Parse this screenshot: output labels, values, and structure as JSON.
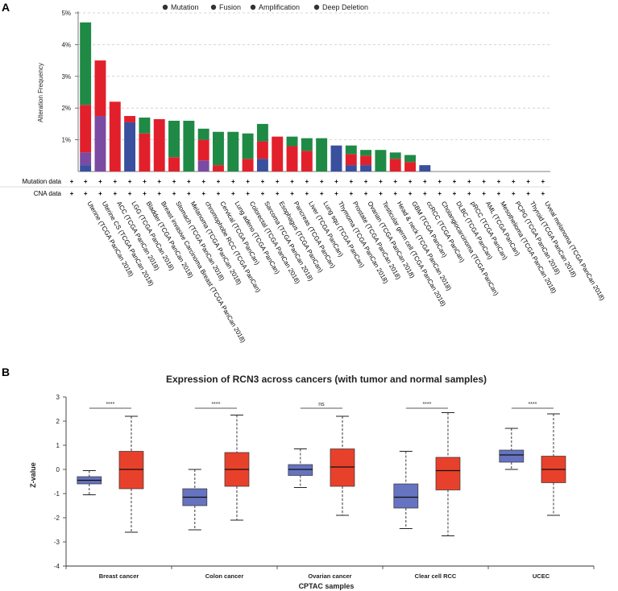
{
  "panels": {
    "a_label": "A",
    "b_label": "B"
  },
  "colors": {
    "mutation": "#3a4f9e",
    "fusion": "#7b4aa3",
    "amplification": "#e2202b",
    "deep_deletion": "#1f8a45",
    "tumor_box": "#e8412b",
    "normal_box": "#6673c0"
  },
  "chart_data": [
    {
      "type": "bar",
      "stacked": true,
      "ylabel": "Alteration Frequency",
      "yticks": [
        "5%",
        "4%",
        "3%",
        "2%",
        "1%"
      ],
      "ylim": [
        0,
        5.0
      ],
      "grid": true,
      "legend_position": "top",
      "legend": [
        "Mutation",
        "Fusion",
        "Amplification",
        "Deep Deletion"
      ],
      "row_labels": [
        "Mutation data",
        "CNA data"
      ],
      "row_marker": "+",
      "categories": [
        "Uterine (TCGA PanCan 2018)",
        "Uterine CS (TCGA PanCan 2018)",
        "ACC (TCGA PanCan 2018)",
        "LGG (TCGA PanCan 2018)",
        "Bladder (TCGA PanCan 2018)",
        "Breast invasive Carcinoma Breast (TCGA PanCan 2018)",
        "Stomach (TCGA PanCan 2018)",
        "Melanoma (TCGA PanCan 2018)",
        "chromophobe RCC (TCGA PanCan)",
        "Cervical (TCGA PanCan)",
        "Lung adeno (TCGA PanCan)",
        "Colorectal (TCGA PanCan 2018)",
        "Sarcoma (TCGA PanCan 2018)",
        "Esophagus (TCGA PanCan)",
        "Pancreas (TCGA PanCan)",
        "Liver (TCGA PanCan)",
        "Lung squ (TCGA PanCan)",
        "Thymoma (TCGA PanCan 2018)",
        "Prostate (TCGA PanCan 2018)",
        "Ovarian (TCGA PanCan 2018)",
        "Testicular germ cell (TCGA PanCan 2018)",
        "Head & neck (TCGA PanCan 2018)",
        "GBM (TCGA PanCan)",
        "ccRCC (TCGA PanCan)",
        "Cholangiocarcinoma (TCGA PanCan)",
        "DLBC (TCGA PanCan)",
        "pRCC (TCGA PanCan)",
        "AML (TCGA PanCan)",
        "Mesothelioma (TCGA PanCan 2018)",
        "PCPG (TCGA PanCan 2018)",
        "Thyroid (TCGA PanCan 2018)",
        "Uveal melanoma (TCGA PanCan 2018)"
      ],
      "series": [
        {
          "name": "Mutation",
          "values": [
            0.2,
            0,
            0,
            1.55,
            0,
            0,
            0,
            0,
            0,
            0,
            0,
            0,
            0.4,
            0,
            0,
            0,
            0,
            0.82,
            0.2,
            0.2,
            0,
            0,
            0,
            0.2,
            0,
            0,
            0,
            0,
            0,
            0,
            0,
            0
          ]
        },
        {
          "name": "Fusion",
          "values": [
            0.4,
            1.75,
            0,
            0,
            0,
            0,
            0,
            0,
            0.35,
            0,
            0,
            0,
            0,
            0,
            0,
            0,
            0,
            0,
            0,
            0,
            0,
            0,
            0,
            0,
            0,
            0,
            0,
            0,
            0,
            0,
            0,
            0
          ]
        },
        {
          "name": "Amplification",
          "values": [
            1.5,
            1.75,
            2.2,
            0.2,
            1.2,
            1.65,
            0.45,
            0,
            0.65,
            0.2,
            0,
            0.4,
            0.55,
            1.1,
            0.8,
            0.65,
            0,
            0,
            0.35,
            0.3,
            0,
            0.4,
            0.3,
            0,
            0,
            0,
            0,
            0,
            0,
            0,
            0,
            0
          ]
        },
        {
          "name": "Deep Deletion",
          "values": [
            2.6,
            0,
            0,
            0,
            0.5,
            0,
            1.15,
            1.6,
            0.35,
            1.05,
            1.25,
            0.8,
            0.55,
            0,
            0.3,
            0.4,
            1.05,
            0,
            0.27,
            0.18,
            0.68,
            0.2,
            0.22,
            0,
            0,
            0,
            0,
            0,
            0,
            0,
            0,
            0
          ]
        }
      ]
    },
    {
      "type": "box",
      "title": "Expression of RCN3 across cancers (with tumor and normal samples)",
      "xlabel": "CPTAC samples",
      "ylabel": "Z-value",
      "ylim": [
        -4,
        3
      ],
      "yticks": [
        3,
        2,
        1,
        0,
        -1,
        -2,
        -3,
        -4
      ],
      "categories": [
        "Breast cancer",
        "Colon cancer",
        "Ovarian cancer",
        "Clear cell RCC",
        "UCEC"
      ],
      "significance": [
        "****",
        "****",
        "ns",
        "****",
        "****"
      ],
      "series": [
        {
          "group": "normal",
          "boxes": [
            {
              "min": -1.05,
              "q1": -0.6,
              "median": -0.45,
              "q3": -0.3,
              "max": -0.05
            },
            {
              "min": -2.5,
              "q1": -1.5,
              "median": -1.15,
              "q3": -0.8,
              "max": 0.0
            },
            {
              "min": -0.75,
              "q1": -0.25,
              "median": 0.0,
              "q3": 0.2,
              "max": 0.85
            },
            {
              "min": -2.45,
              "q1": -1.6,
              "median": -1.15,
              "q3": -0.6,
              "max": 0.75
            },
            {
              "min": 0.0,
              "q1": 0.3,
              "median": 0.6,
              "q3": 0.8,
              "max": 1.7
            }
          ]
        },
        {
          "group": "tumor",
          "boxes": [
            {
              "min": -2.6,
              "q1": -0.8,
              "median": 0.0,
              "q3": 0.75,
              "max": 2.2
            },
            {
              "min": -2.1,
              "q1": -0.7,
              "median": 0.0,
              "q3": 0.7,
              "max": 2.25
            },
            {
              "min": -1.9,
              "q1": -0.7,
              "median": 0.1,
              "q3": 0.85,
              "max": 2.2
            },
            {
              "min": -2.75,
              "q1": -0.85,
              "median": -0.05,
              "q3": 0.5,
              "max": 2.35
            },
            {
              "min": -1.9,
              "q1": -0.55,
              "median": 0.0,
              "q3": 0.55,
              "max": 2.3
            }
          ]
        }
      ]
    }
  ]
}
